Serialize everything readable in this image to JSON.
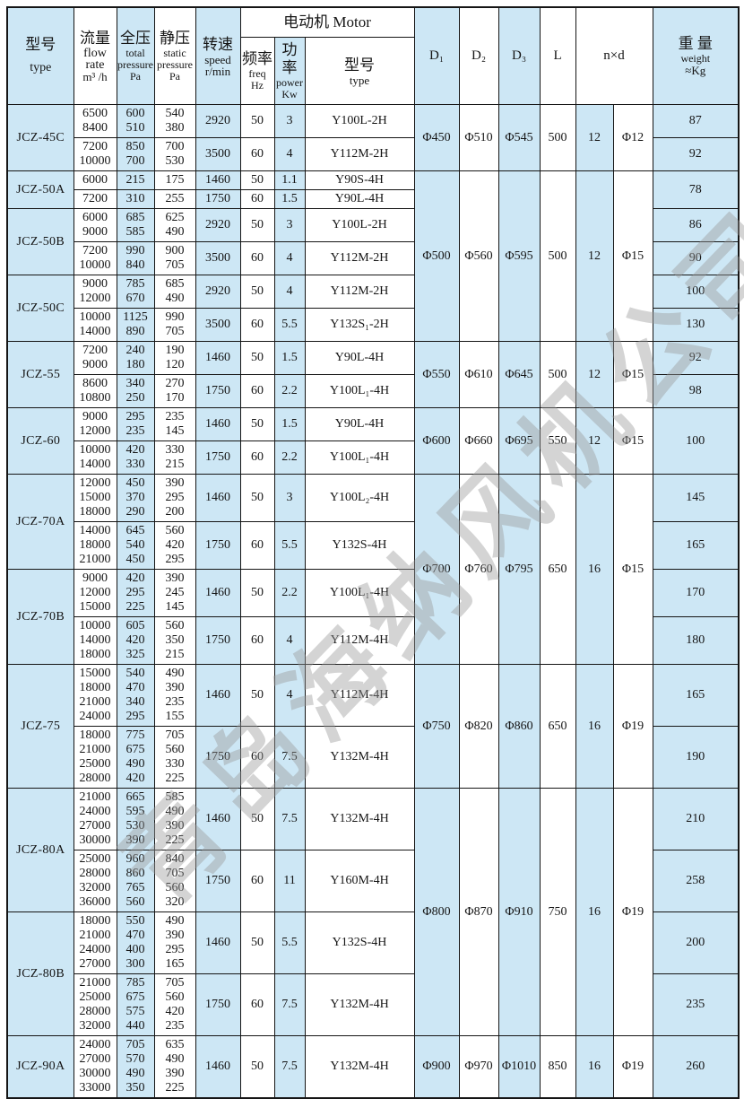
{
  "watermark": "青岛海纳风机公司",
  "header": {
    "motor_banner": "电动机 Motor",
    "model_zh": "型号",
    "model_en": "type",
    "flow_zh": "流量",
    "flow_en1": "flow",
    "flow_en2": "rate",
    "flow_unit": "m³ /h",
    "total_zh": "全压",
    "total_en1": "total",
    "total_en2": "pressure",
    "total_unit": "Pa",
    "static_zh": "静压",
    "static_en1": "static",
    "static_en2": "pressure",
    "static_unit": "Pa",
    "speed_zh": "转速",
    "speed_en1": "speed",
    "speed_en2": "r/min",
    "freq_zh": "频率",
    "freq_en1": "freq",
    "freq_en2": "Hz",
    "power_zh": "功率",
    "power_en1": "power",
    "power_en2": "Kw",
    "motor_type_zh": "型号",
    "motor_type_en": "type",
    "d1": "D₁",
    "d2": "D₂",
    "d3": "D₃",
    "l": "L",
    "nxd": "n×d",
    "weight_zh": "重 量",
    "weight_en1": "weight",
    "weight_en2": "≈Kg"
  },
  "dim_groups": [
    {
      "d1": "Φ450",
      "d2": "Φ510",
      "d3": "Φ545",
      "l": "500",
      "n": "12",
      "d": "Φ12",
      "models": [
        {
          "name": "JCZ-45C",
          "rows": [
            {
              "flow": [
                "6500",
                "8400"
              ],
              "total": [
                "600",
                "510"
              ],
              "static": [
                "540",
                "380"
              ],
              "speed": "2920",
              "freq": "50",
              "power": "3",
              "motor": "Y100L-2H",
              "weight": "87"
            },
            {
              "flow": [
                "7200",
                "10000"
              ],
              "total": [
                "850",
                "700"
              ],
              "static": [
                "700",
                "530"
              ],
              "speed": "3500",
              "freq": "60",
              "power": "4",
              "motor": "Y112M-2H",
              "weight": "92"
            }
          ]
        }
      ]
    },
    {
      "d1": "Φ500",
      "d2": "Φ560",
      "d3": "Φ595",
      "l": "500",
      "n": "12",
      "d": "Φ15",
      "models": [
        {
          "name": "JCZ-50A",
          "merged_weight": "78",
          "rows": [
            {
              "flow": [
                "6000"
              ],
              "total": [
                "215"
              ],
              "static": [
                "175"
              ],
              "speed": "1460",
              "freq": "50",
              "power": "1.1",
              "motor": "Y90S-4H"
            },
            {
              "flow": [
                "7200"
              ],
              "total": [
                "310"
              ],
              "static": [
                "255"
              ],
              "speed": "1750",
              "freq": "60",
              "power": "1.5",
              "motor": "Y90L-4H"
            }
          ]
        },
        {
          "name": "JCZ-50B",
          "rows": [
            {
              "flow": [
                "6000",
                "9000"
              ],
              "total": [
                "685",
                "585"
              ],
              "static": [
                "625",
                "490"
              ],
              "speed": "2920",
              "freq": "50",
              "power": "3",
              "motor": "Y100L-2H",
              "weight": "86"
            },
            {
              "flow": [
                "7200",
                "10000"
              ],
              "total": [
                "990",
                "840"
              ],
              "static": [
                "900",
                "705"
              ],
              "speed": "3500",
              "freq": "60",
              "power": "4",
              "motor": "Y112M-2H",
              "weight": "90"
            }
          ]
        },
        {
          "name": "JCZ-50C",
          "rows": [
            {
              "flow": [
                "9000",
                "12000"
              ],
              "total": [
                "785",
                "670"
              ],
              "static": [
                "685",
                "490"
              ],
              "speed": "2920",
              "freq": "50",
              "power": "4",
              "motor": "Y112M-2H",
              "weight": "100"
            },
            {
              "flow": [
                "10000",
                "14000"
              ],
              "total": [
                "1125",
                "890"
              ],
              "static": [
                "990",
                "705"
              ],
              "speed": "3500",
              "freq": "60",
              "power": "5.5",
              "motor": "Y132S₁-2H",
              "weight": "130"
            }
          ]
        }
      ]
    },
    {
      "d1": "Φ550",
      "d2": "Φ610",
      "d3": "Φ645",
      "l": "500",
      "n": "12",
      "d": "Φ15",
      "models": [
        {
          "name": "JCZ-55",
          "rows": [
            {
              "flow": [
                "7200",
                "9000"
              ],
              "total": [
                "240",
                "180"
              ],
              "static": [
                "190",
                "120"
              ],
              "speed": "1460",
              "freq": "50",
              "power": "1.5",
              "motor": "Y90L-4H",
              "weight": "92"
            },
            {
              "flow": [
                "8600",
                "10800"
              ],
              "total": [
                "340",
                "250"
              ],
              "static": [
                "270",
                "170"
              ],
              "speed": "1750",
              "freq": "60",
              "power": "2.2",
              "motor": "Y100L₁-4H",
              "weight": "98"
            }
          ]
        }
      ]
    },
    {
      "d1": "Φ600",
      "d2": "Φ660",
      "d3": "Φ695",
      "l": "550",
      "n": "12",
      "d": "Φ15",
      "models": [
        {
          "name": "JCZ-60",
          "merged_weight": "100",
          "rows": [
            {
              "flow": [
                "9000",
                "12000"
              ],
              "total": [
                "295",
                "235"
              ],
              "static": [
                "235",
                "145"
              ],
              "speed": "1460",
              "freq": "50",
              "power": "1.5",
              "motor": "Y90L-4H"
            },
            {
              "flow": [
                "10000",
                "14000"
              ],
              "total": [
                "420",
                "330"
              ],
              "static": [
                "330",
                "215"
              ],
              "speed": "1750",
              "freq": "60",
              "power": "2.2",
              "motor": "Y100L₁-4H"
            }
          ]
        }
      ]
    },
    {
      "d1": "Φ700",
      "d2": "Φ760",
      "d3": "Φ795",
      "l": "650",
      "n": "16",
      "d": "Φ15",
      "models": [
        {
          "name": "JCZ-70A",
          "rows": [
            {
              "flow": [
                "12000",
                "15000",
                "18000"
              ],
              "total": [
                "450",
                "370",
                "290"
              ],
              "static": [
                "390",
                "295",
                "200"
              ],
              "speed": "1460",
              "freq": "50",
              "power": "3",
              "motor": "Y100L₂-4H",
              "weight": "145"
            },
            {
              "flow": [
                "14000",
                "18000",
                "21000"
              ],
              "total": [
                "645",
                "540",
                "450"
              ],
              "static": [
                "560",
                "420",
                "295"
              ],
              "speed": "1750",
              "freq": "60",
              "power": "5.5",
              "motor": "Y132S-4H",
              "weight": "165"
            }
          ]
        },
        {
          "name": "JCZ-70B",
          "rows": [
            {
              "flow": [
                "9000",
                "12000",
                "15000"
              ],
              "total": [
                "420",
                "295",
                "225"
              ],
              "static": [
                "390",
                "245",
                "145"
              ],
              "speed": "1460",
              "freq": "50",
              "power": "2.2",
              "motor": "Y100L₁-4H",
              "weight": "170"
            },
            {
              "flow": [
                "10000",
                "14000",
                "18000"
              ],
              "total": [
                "605",
                "420",
                "325"
              ],
              "static": [
                "560",
                "350",
                "215"
              ],
              "speed": "1750",
              "freq": "60",
              "power": "4",
              "motor": "Y112M-4H",
              "weight": "180"
            }
          ]
        }
      ]
    },
    {
      "d1": "Φ750",
      "d2": "Φ820",
      "d3": "Φ860",
      "l": "650",
      "n": "16",
      "d": "Φ19",
      "models": [
        {
          "name": "JCZ-75",
          "rows": [
            {
              "flow": [
                "15000",
                "18000",
                "21000",
                "24000"
              ],
              "total": [
                "540",
                "470",
                "340",
                "295"
              ],
              "static": [
                "490",
                "390",
                "235",
                "155"
              ],
              "speed": "1460",
              "freq": "50",
              "power": "4",
              "motor": "Y112M-4H",
              "weight": "165"
            },
            {
              "flow": [
                "18000",
                "21000",
                "25000",
                "28000"
              ],
              "total": [
                "775",
                "675",
                "490",
                "420"
              ],
              "static": [
                "705",
                "560",
                "330",
                "225"
              ],
              "speed": "1750",
              "freq": "60",
              "power": "7.5",
              "motor": "Y132M-4H",
              "weight": "190"
            }
          ]
        }
      ]
    },
    {
      "d1": "Φ800",
      "d2": "Φ870",
      "d3": "Φ910",
      "l": "750",
      "n": "16",
      "d": "Φ19",
      "models": [
        {
          "name": "JCZ-80A",
          "rows": [
            {
              "flow": [
                "21000",
                "24000",
                "27000",
                "30000"
              ],
              "total": [
                "665",
                "595",
                "530",
                "390"
              ],
              "static": [
                "585",
                "490",
                "390",
                "225"
              ],
              "speed": "1460",
              "freq": "50",
              "power": "7.5",
              "motor": "Y132M-4H",
              "weight": "210"
            },
            {
              "flow": [
                "25000",
                "28000",
                "32000",
                "36000"
              ],
              "total": [
                "960",
                "860",
                "765",
                "560"
              ],
              "static": [
                "840",
                "705",
                "560",
                "320"
              ],
              "speed": "1750",
              "freq": "60",
              "power": "11",
              "motor": "Y160M-4H",
              "weight": "258"
            }
          ]
        },
        {
          "name": "JCZ-80B",
          "rows": [
            {
              "flow": [
                "18000",
                "21000",
                "24000",
                "27000"
              ],
              "total": [
                "550",
                "470",
                "400",
                "300"
              ],
              "static": [
                "490",
                "390",
                "295",
                "165"
              ],
              "speed": "1460",
              "freq": "50",
              "power": "5.5",
              "motor": "Y132S-4H",
              "weight": "200"
            },
            {
              "flow": [
                "21000",
                "25000",
                "28000",
                "32000"
              ],
              "total": [
                "785",
                "675",
                "575",
                "440"
              ],
              "static": [
                "705",
                "560",
                "420",
                "235"
              ],
              "speed": "1750",
              "freq": "60",
              "power": "7.5",
              "motor": "Y132M-4H",
              "weight": "235"
            }
          ]
        }
      ]
    },
    {
      "d1": "Φ900",
      "d2": "Φ970",
      "d3": "Φ1010",
      "l": "850",
      "n": "16",
      "d": "Φ19",
      "models": [
        {
          "name": "JCZ-90A",
          "rows": [
            {
              "flow": [
                "24000",
                "27000",
                "30000",
                "33000"
              ],
              "total": [
                "705",
                "570",
                "490",
                "350"
              ],
              "static": [
                "635",
                "490",
                "390",
                "225"
              ],
              "speed": "1460",
              "freq": "50",
              "power": "7.5",
              "motor": "Y132M-4H",
              "weight": "260"
            }
          ]
        }
      ]
    }
  ]
}
